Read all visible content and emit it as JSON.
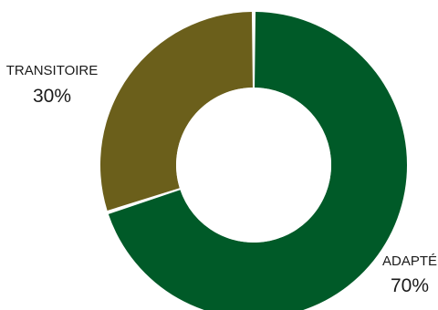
{
  "chart_data": {
    "type": "pie",
    "donut": true,
    "legend": "none",
    "slices": [
      {
        "label": "ADAPTÉ",
        "value": 70,
        "value_label": "70%",
        "color": "#005a28"
      },
      {
        "label": "TRANSITOIRE",
        "value": 30,
        "value_label": "30%",
        "color": "#6b5f1b"
      }
    ]
  }
}
